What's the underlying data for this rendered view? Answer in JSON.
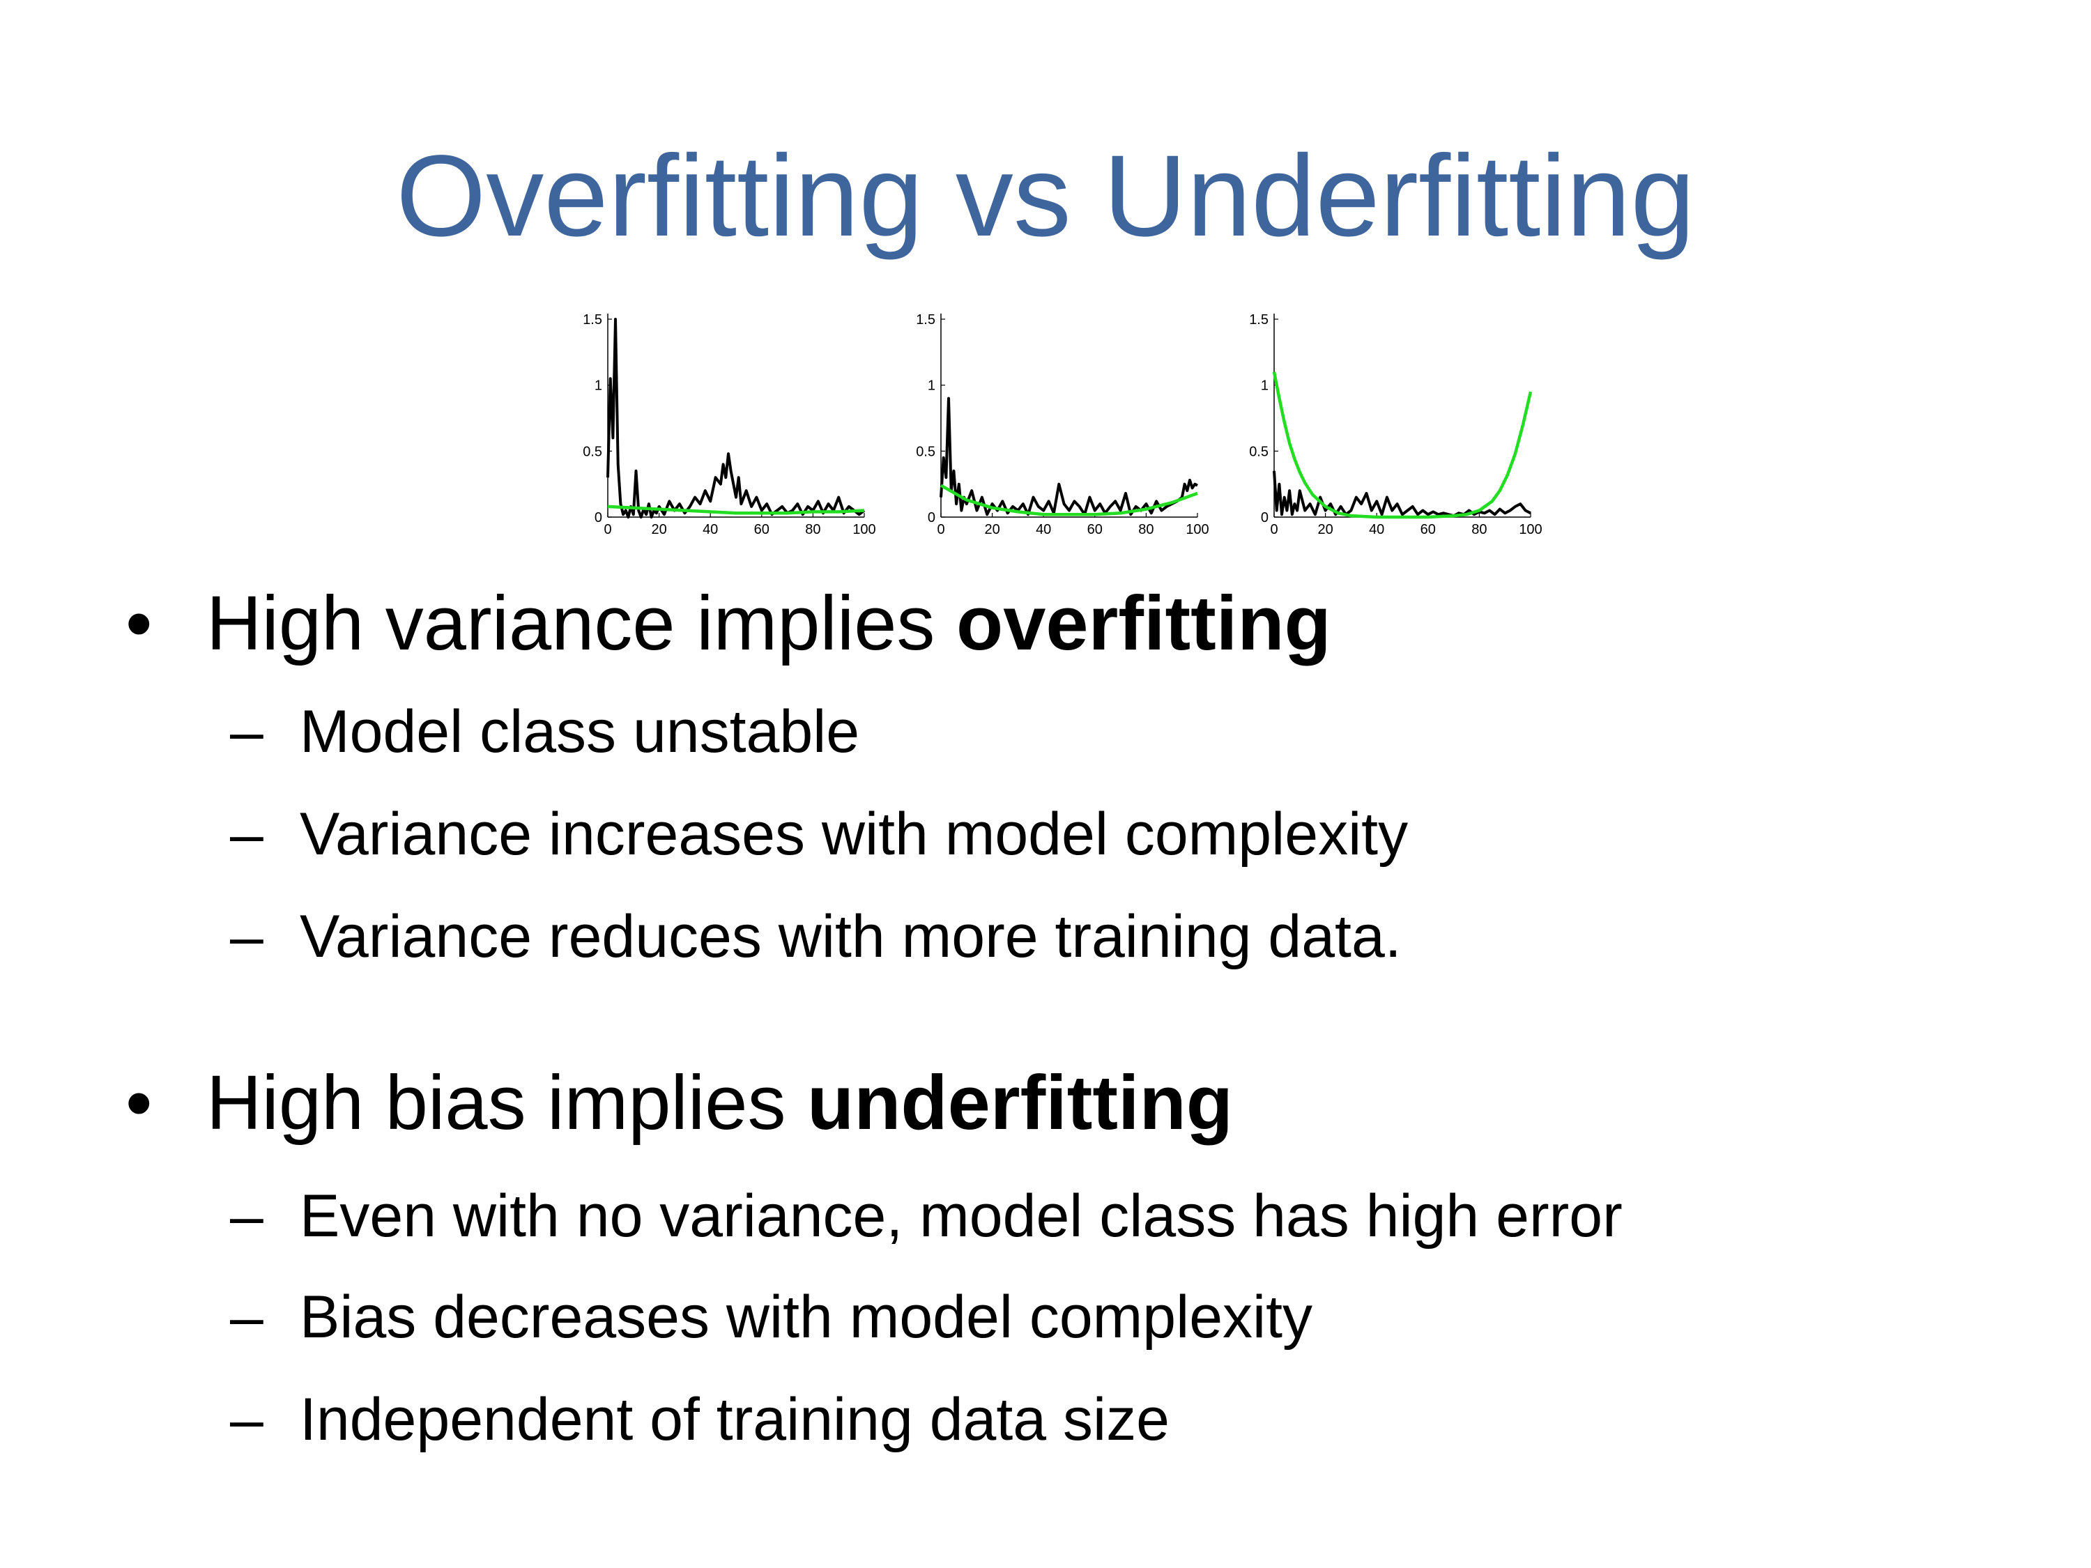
{
  "slide": {
    "title": "Overfitting vs Underfitting",
    "bullets": [
      {
        "marker": "•",
        "text_prefix": "High variance implies ",
        "text_bold": "overfitting",
        "subitems": [
          {
            "marker": "–",
            "text": "Model class unstable"
          },
          {
            "marker": "–",
            "text": "Variance increases with model complexity"
          },
          {
            "marker": "–",
            "text": "Variance reduces with more training data."
          }
        ]
      },
      {
        "marker": "•",
        "text_prefix": "High bias implies ",
        "text_bold": "underfitting",
        "subitems": [
          {
            "marker": "–",
            "text": "Even with no variance, model class has high error"
          },
          {
            "marker": "–",
            "text": "Bias decreases with model complexity"
          },
          {
            "marker": "–",
            "text": "Independent of training data size"
          }
        ]
      }
    ]
  },
  "chart_data": [
    {
      "type": "line",
      "xlim": [
        0,
        100
      ],
      "ylim": [
        0,
        1.5
      ],
      "xticks": [
        "0",
        "20",
        "40",
        "60",
        "80",
        "100"
      ],
      "yticks": [
        "0",
        "0.5",
        "1",
        "1.5"
      ],
      "series": [
        {
          "color": "#000000",
          "x": [
            0,
            1,
            2,
            3,
            4,
            5,
            6,
            7,
            8,
            9,
            10,
            11,
            12,
            13,
            14,
            15,
            16,
            17,
            18,
            19,
            20,
            22,
            24,
            26,
            28,
            30,
            32,
            34,
            36,
            38,
            40,
            42,
            44,
            45,
            46,
            47,
            48,
            49,
            50,
            51,
            52,
            54,
            56,
            58,
            60,
            62,
            64,
            66,
            68,
            70,
            72,
            74,
            76,
            78,
            80,
            82,
            84,
            86,
            88,
            90,
            92,
            94,
            96,
            98,
            100
          ],
          "y": [
            0.3,
            1.05,
            0.6,
            1.5,
            0.4,
            0.1,
            0.02,
            0.05,
            0.0,
            0.08,
            0.02,
            0.35,
            0.05,
            0.0,
            0.06,
            0.02,
            0.1,
            0.0,
            0.05,
            0.03,
            0.08,
            0.02,
            0.12,
            0.05,
            0.1,
            0.03,
            0.08,
            0.15,
            0.1,
            0.2,
            0.12,
            0.3,
            0.25,
            0.4,
            0.3,
            0.48,
            0.35,
            0.25,
            0.15,
            0.3,
            0.1,
            0.2,
            0.08,
            0.15,
            0.05,
            0.1,
            0.02,
            0.05,
            0.08,
            0.03,
            0.05,
            0.1,
            0.02,
            0.08,
            0.05,
            0.12,
            0.03,
            0.1,
            0.05,
            0.15,
            0.03,
            0.08,
            0.05,
            0.02,
            0.05
          ]
        },
        {
          "color": "#22dd22",
          "x": [
            0,
            10,
            20,
            30,
            40,
            50,
            60,
            70,
            80,
            90,
            100
          ],
          "y": [
            0.08,
            0.07,
            0.06,
            0.05,
            0.04,
            0.03,
            0.03,
            0.03,
            0.04,
            0.04,
            0.05
          ]
        }
      ]
    },
    {
      "type": "line",
      "xlim": [
        0,
        100
      ],
      "ylim": [
        0,
        1.5
      ],
      "xticks": [
        "0",
        "20",
        "40",
        "60",
        "80",
        "100"
      ],
      "yticks": [
        "0",
        "0.5",
        "1",
        "1.5"
      ],
      "series": [
        {
          "color": "#000000",
          "x": [
            0,
            1,
            2,
            3,
            4,
            5,
            6,
            7,
            8,
            9,
            10,
            12,
            14,
            16,
            18,
            20,
            22,
            24,
            26,
            28,
            30,
            32,
            34,
            36,
            38,
            40,
            42,
            44,
            46,
            48,
            50,
            52,
            54,
            56,
            58,
            60,
            62,
            64,
            66,
            68,
            70,
            72,
            74,
            76,
            78,
            80,
            82,
            84,
            86,
            88,
            90,
            92,
            94,
            95,
            96,
            97,
            98,
            99,
            100
          ],
          "y": [
            0.15,
            0.45,
            0.3,
            0.9,
            0.2,
            0.35,
            0.1,
            0.25,
            0.05,
            0.15,
            0.1,
            0.2,
            0.05,
            0.15,
            0.02,
            0.1,
            0.05,
            0.12,
            0.03,
            0.08,
            0.05,
            0.1,
            0.02,
            0.15,
            0.08,
            0.05,
            0.12,
            0.03,
            0.25,
            0.1,
            0.05,
            0.12,
            0.08,
            0.02,
            0.15,
            0.05,
            0.1,
            0.03,
            0.08,
            0.12,
            0.05,
            0.18,
            0.02,
            0.08,
            0.05,
            0.1,
            0.03,
            0.12,
            0.05,
            0.08,
            0.1,
            0.12,
            0.15,
            0.25,
            0.2,
            0.28,
            0.22,
            0.25,
            0.24
          ]
        },
        {
          "color": "#22dd22",
          "x": [
            0,
            10,
            20,
            30,
            40,
            50,
            60,
            70,
            80,
            90,
            100
          ],
          "y": [
            0.24,
            0.13,
            0.07,
            0.04,
            0.02,
            0.02,
            0.02,
            0.03,
            0.06,
            0.11,
            0.18
          ]
        }
      ]
    },
    {
      "type": "line",
      "xlim": [
        0,
        100
      ],
      "ylim": [
        0,
        1.5
      ],
      "xticks": [
        "0",
        "20",
        "40",
        "60",
        "80",
        "100"
      ],
      "yticks": [
        "0",
        "0.5",
        "1",
        "1.5"
      ],
      "series": [
        {
          "color": "#000000",
          "x": [
            0,
            1,
            2,
            3,
            4,
            5,
            6,
            7,
            8,
            9,
            10,
            12,
            14,
            16,
            18,
            20,
            22,
            24,
            26,
            28,
            30,
            32,
            34,
            36,
            38,
            40,
            42,
            44,
            46,
            48,
            50,
            52,
            54,
            56,
            58,
            60,
            62,
            64,
            66,
            68,
            70,
            72,
            74,
            76,
            78,
            80,
            82,
            84,
            86,
            88,
            90,
            92,
            94,
            96,
            98,
            100
          ],
          "y": [
            0.35,
            0.05,
            0.25,
            0.02,
            0.15,
            0.05,
            0.2,
            0.02,
            0.1,
            0.05,
            0.2,
            0.05,
            0.1,
            0.02,
            0.15,
            0.05,
            0.1,
            0.02,
            0.08,
            0.02,
            0.05,
            0.15,
            0.1,
            0.18,
            0.05,
            0.12,
            0.02,
            0.15,
            0.05,
            0.1,
            0.02,
            0.05,
            0.08,
            0.02,
            0.05,
            0.02,
            0.04,
            0.02,
            0.03,
            0.02,
            0.01,
            0.03,
            0.02,
            0.05,
            0.02,
            0.04,
            0.03,
            0.05,
            0.02,
            0.06,
            0.03,
            0.05,
            0.08,
            0.1,
            0.05,
            0.03
          ]
        },
        {
          "color": "#22dd22",
          "x": [
            0,
            2,
            4,
            6,
            8,
            10,
            12,
            15,
            20,
            25,
            30,
            40,
            50,
            60,
            70,
            75,
            80,
            85,
            88,
            91,
            94,
            97,
            100
          ],
          "y": [
            1.1,
            0.9,
            0.72,
            0.56,
            0.44,
            0.34,
            0.26,
            0.17,
            0.08,
            0.03,
            0.01,
            0.0,
            0.0,
            0.0,
            0.01,
            0.02,
            0.05,
            0.12,
            0.2,
            0.32,
            0.48,
            0.7,
            0.95
          ]
        }
      ]
    }
  ]
}
